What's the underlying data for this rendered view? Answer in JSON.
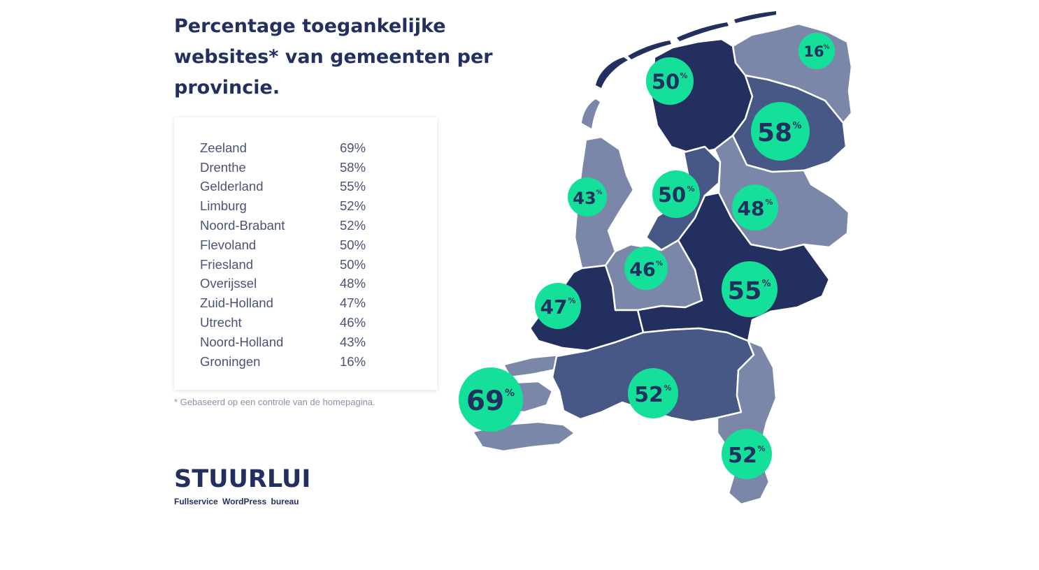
{
  "title": "Percentage toegankelijke websites* van gemeenten per provincie.",
  "table": [
    {
      "name": "Zeeland",
      "value": "69%"
    },
    {
      "name": "Drenthe",
      "value": "58%"
    },
    {
      "name": "Gelderland",
      "value": "55%"
    },
    {
      "name": "Limburg",
      "value": "52%"
    },
    {
      "name": "Noord-Brabant",
      "value": "52%"
    },
    {
      "name": "Flevoland",
      "value": "50%"
    },
    {
      "name": "Friesland",
      "value": "50%"
    },
    {
      "name": "Overijssel",
      "value": "48%"
    },
    {
      "name": "Zuid-Holland",
      "value": "47%"
    },
    {
      "name": "Utrecht",
      "value": "46%"
    },
    {
      "name": "Noord-Holland",
      "value": "43%"
    },
    {
      "name": "Groningen",
      "value": "16%"
    }
  ],
  "footnote": "* Gebaseerd op een controle van de homepagina.",
  "logo": {
    "name": "STUURLUI",
    "tagline": "Fullservice WordPress bureau"
  },
  "map_labels": {
    "groningen": {
      "num": "16",
      "unit": "%"
    },
    "friesland": {
      "num": "50",
      "unit": "%"
    },
    "drenthe": {
      "num": "58",
      "unit": "%"
    },
    "noord_holland": {
      "num": "43",
      "unit": "%"
    },
    "flevoland": {
      "num": "50",
      "unit": "%"
    },
    "overijssel": {
      "num": "48",
      "unit": "%"
    },
    "utrecht": {
      "num": "46",
      "unit": "%"
    },
    "gelderland": {
      "num": "55",
      "unit": "%"
    },
    "zuid_holland": {
      "num": "47",
      "unit": "%"
    },
    "zeeland": {
      "num": "69",
      "unit": "%"
    },
    "noord_brabant": {
      "num": "52",
      "unit": "%"
    },
    "limburg": {
      "num": "52",
      "unit": "%"
    }
  },
  "colors": {
    "dark": "#23305f",
    "mid": "#475886",
    "light": "#7a87a8",
    "accent": "#14e09a"
  }
}
